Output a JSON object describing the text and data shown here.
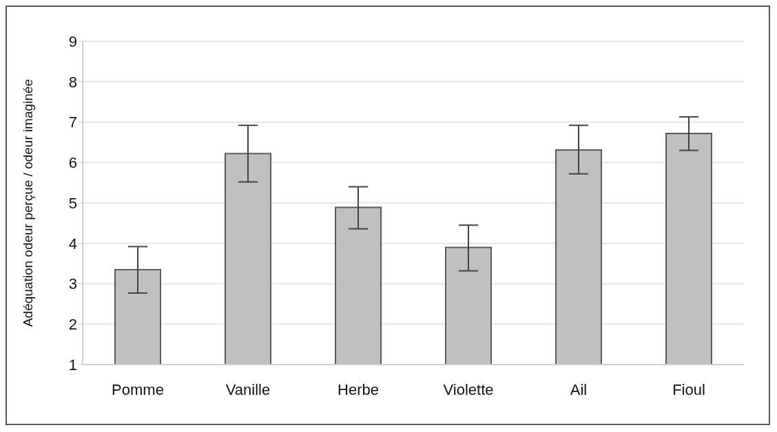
{
  "chart_data": {
    "type": "bar",
    "ylabel": "Adéquation odeur perçue / odeur imaginée",
    "categories": [
      "Pomme",
      "Vanille",
      "Herbe",
      "Violette",
      "Ail",
      "Fioul"
    ],
    "values": [
      3.35,
      6.22,
      4.89,
      3.9,
      6.31,
      6.72
    ],
    "errors": [
      [
        2.77,
        3.92
      ],
      [
        5.52,
        6.92
      ],
      [
        4.36,
        5.4
      ],
      [
        3.32,
        4.45
      ],
      [
        5.72,
        6.92
      ],
      [
        6.3,
        7.13
      ]
    ],
    "color": "#c0c0c0",
    "ylim": [
      1,
      9
    ],
    "yticks": [
      1,
      2,
      3,
      4,
      5,
      6,
      7,
      8,
      9
    ],
    "grid": "y",
    "legend": false
  }
}
